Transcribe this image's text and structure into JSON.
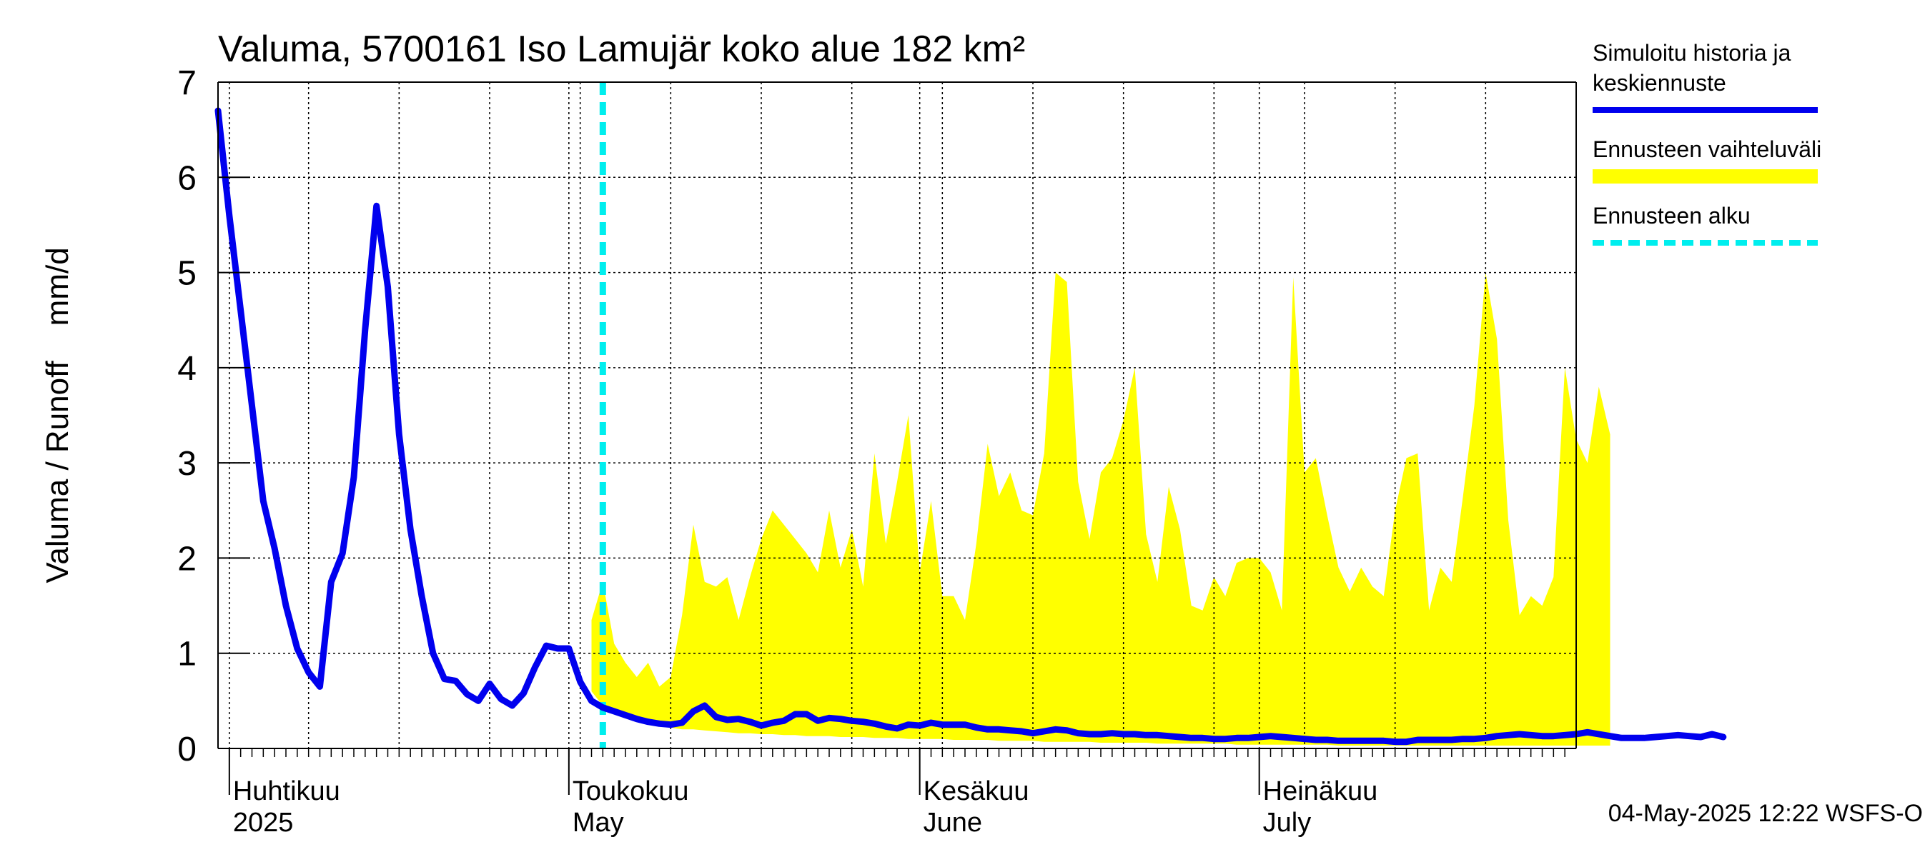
{
  "chart_data": {
    "type": "line",
    "title": "Valuma, 5700161 Iso Lamujär koko alue 182 km²",
    "ylabel": "Valuma / Runoff    mm/d",
    "ylim": [
      0,
      7
    ],
    "yticks": [
      "0",
      "1",
      "2",
      "3",
      "4",
      "5",
      "6",
      "7"
    ],
    "xlim": [
      "2025-03-31",
      "2025-07-29"
    ],
    "grid": true,
    "legend_position": "right",
    "month_labels": [
      {
        "date": "2025-04-01",
        "fi": "Huhtikuu",
        "en": "2025"
      },
      {
        "date": "2025-05-01",
        "fi": "Toukokuu",
        "en": "May"
      },
      {
        "date": "2025-06-01",
        "fi": "Kesäkuu",
        "en": "June"
      },
      {
        "date": "2025-07-01",
        "fi": "Heinäkuu",
        "en": "July"
      }
    ],
    "forecast_start": "2025-05-04",
    "legend": [
      {
        "lines": [
          "Simuloitu historia ja",
          "keskiennuste"
        ],
        "color": "#0000ee",
        "style": "solid"
      },
      {
        "lines": [
          "Ennusteen vaihteluväli"
        ],
        "color": "#ffff00",
        "style": "band"
      },
      {
        "lines": [
          "Ennusteen alku"
        ],
        "color": "#00eeee",
        "style": "dashed"
      }
    ],
    "footer": "04-May-2025 12:22 WSFS-O",
    "series": [
      {
        "name": "Simuloitu historia ja keskiennuste",
        "color": "#0000ee",
        "start_date": "2025-03-31",
        "values": [
          6.7,
          5.6,
          4.6,
          3.6,
          2.6,
          2.1,
          1.5,
          1.05,
          0.8,
          0.65,
          1.75,
          2.05,
          2.85,
          4.4,
          5.7,
          4.85,
          3.3,
          2.3,
          1.6,
          1.0,
          0.73,
          0.71,
          0.57,
          0.5,
          0.68,
          0.52,
          0.45,
          0.58,
          0.85,
          1.08,
          1.05,
          1.05,
          0.7,
          0.5,
          0.43,
          0.39,
          0.35,
          0.31,
          0.28,
          0.26,
          0.25,
          0.27,
          0.39,
          0.45,
          0.33,
          0.3,
          0.31,
          0.28,
          0.24,
          0.27,
          0.29,
          0.36,
          0.36,
          0.29,
          0.32,
          0.31,
          0.29,
          0.28,
          0.26,
          0.23,
          0.21,
          0.25,
          0.24,
          0.27,
          0.25,
          0.25,
          0.25,
          0.22,
          0.2,
          0.2,
          0.19,
          0.18,
          0.16,
          0.18,
          0.2,
          0.19,
          0.16,
          0.15,
          0.15,
          0.16,
          0.15,
          0.15,
          0.14,
          0.14,
          0.13,
          0.12,
          0.11,
          0.11,
          0.1,
          0.1,
          0.11,
          0.11,
          0.12,
          0.13,
          0.12,
          0.11,
          0.1,
          0.09,
          0.09,
          0.08,
          0.08,
          0.08,
          0.08,
          0.08,
          0.07,
          0.07,
          0.09,
          0.09,
          0.09,
          0.09,
          0.1,
          0.1,
          0.11,
          0.13,
          0.14,
          0.15,
          0.14,
          0.13,
          0.13,
          0.14,
          0.15,
          0.17,
          0.15,
          0.13,
          0.11,
          0.11,
          0.11,
          0.12,
          0.13,
          0.14,
          0.13,
          0.12,
          0.15,
          0.12
        ]
      },
      {
        "name": "Ennusteen vaihteluväli",
        "type": "band",
        "color": "#ffff00",
        "start_date": "2025-05-03",
        "upper": [
          1.35,
          1.75,
          1.1,
          0.9,
          0.75,
          0.9,
          0.65,
          0.75,
          1.4,
          2.35,
          1.75,
          1.7,
          1.8,
          1.35,
          1.8,
          2.2,
          2.5,
          2.35,
          2.2,
          2.05,
          1.85,
          2.5,
          1.9,
          2.3,
          1.7,
          3.1,
          2.15,
          2.8,
          3.5,
          1.85,
          2.6,
          1.6,
          1.6,
          1.35,
          2.15,
          3.2,
          2.65,
          2.9,
          2.5,
          2.45,
          3.1,
          5.0,
          4.9,
          2.8,
          2.2,
          2.9,
          3.05,
          3.45,
          4.0,
          2.25,
          1.75,
          2.75,
          2.3,
          1.5,
          1.45,
          1.8,
          1.6,
          1.95,
          2.0,
          2.0,
          1.85,
          1.45,
          4.95,
          2.9,
          3.05,
          2.45,
          1.9,
          1.65,
          1.9,
          1.7,
          1.6,
          2.5,
          3.05,
          3.1,
          1.45,
          1.9,
          1.75,
          2.65,
          3.6,
          5.0,
          4.3,
          2.4,
          1.4,
          1.6,
          1.5,
          1.8,
          4.0,
          3.25,
          3.0,
          3.8,
          3.3
        ],
        "lower": [
          0.6,
          0.45,
          0.38,
          0.33,
          0.3,
          0.27,
          0.24,
          0.22,
          0.2,
          0.2,
          0.19,
          0.18,
          0.17,
          0.16,
          0.16,
          0.15,
          0.15,
          0.14,
          0.14,
          0.13,
          0.13,
          0.13,
          0.12,
          0.12,
          0.12,
          0.11,
          0.11,
          0.11,
          0.1,
          0.1,
          0.1,
          0.1,
          0.09,
          0.09,
          0.09,
          0.09,
          0.08,
          0.08,
          0.08,
          0.08,
          0.07,
          0.07,
          0.07,
          0.07,
          0.07,
          0.06,
          0.06,
          0.06,
          0.06,
          0.06,
          0.05,
          0.05,
          0.05,
          0.05,
          0.05,
          0.05,
          0.05,
          0.04,
          0.04,
          0.04,
          0.04,
          0.04,
          0.04,
          0.04,
          0.04,
          0.04,
          0.03,
          0.03,
          0.03,
          0.03,
          0.03,
          0.03,
          0.03,
          0.03,
          0.03,
          0.03,
          0.03,
          0.03,
          0.03,
          0.03,
          0.03,
          0.03,
          0.03,
          0.03,
          0.03,
          0.03,
          0.03,
          0.03,
          0.03,
          0.03,
          0.03
        ]
      }
    ]
  }
}
